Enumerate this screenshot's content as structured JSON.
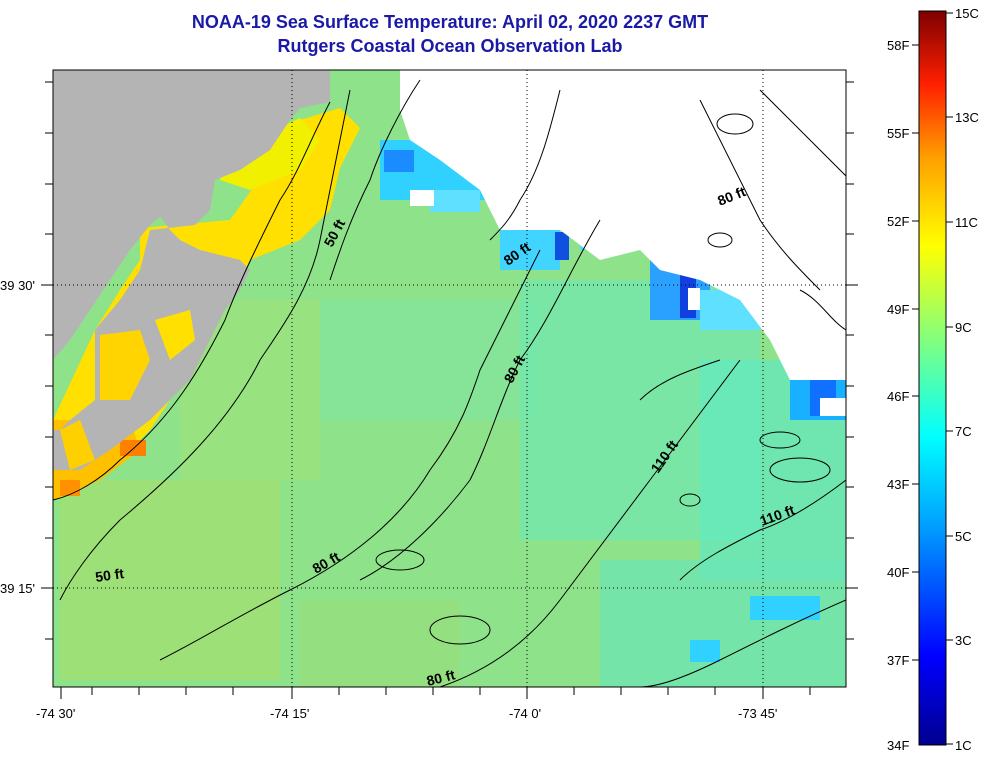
{
  "title": {
    "line1": "NOAA-19 Sea Surface Temperature:  April 02, 2020 2237 GMT",
    "line2": "Rutgers Coastal Ocean Observation Lab"
  },
  "map": {
    "lat_labels": [
      "39 30'",
      "39 15'"
    ],
    "lon_labels": [
      "-74 30'",
      "-74 15'",
      "-74 0'",
      "-73 45'"
    ],
    "contour_labels": [
      "50 ft",
      "80 ft",
      "80 ft",
      "80 ft",
      "110 ft",
      "110 ft",
      "50 ft",
      "80 ft",
      "80 ft"
    ],
    "colors": {
      "land": "#b4b4b4",
      "cloud": "#ffffff",
      "water_main": "#8ee28a"
    }
  },
  "colorbar": {
    "fahrenheit": [
      "58F",
      "55F",
      "52F",
      "49F",
      "46F",
      "43F",
      "40F",
      "37F",
      "34F"
    ],
    "celsius": [
      "15C",
      "13C",
      "11C",
      "9C",
      "7C",
      "5C",
      "3C",
      "1C"
    ]
  }
}
